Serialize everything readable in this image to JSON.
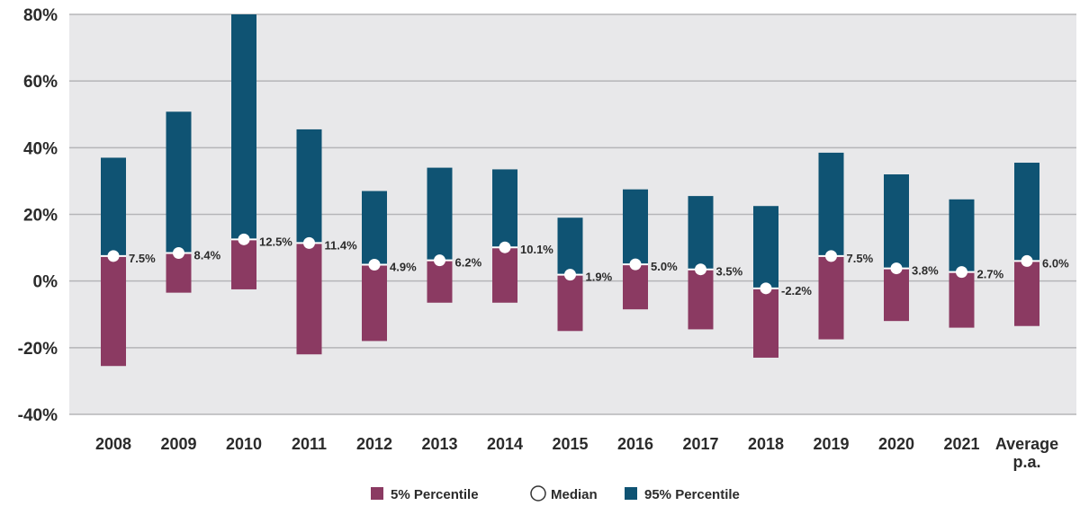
{
  "chart_data": {
    "type": "bar",
    "categories": [
      "2008",
      "2009",
      "2010",
      "2011",
      "2012",
      "2013",
      "2014",
      "2015",
      "2016",
      "2017",
      "2018",
      "2019",
      "2020",
      "2021",
      "Average p.a."
    ],
    "category_lines": [
      [
        "2008"
      ],
      [
        "2009"
      ],
      [
        "2010"
      ],
      [
        "2011"
      ],
      [
        "2012"
      ],
      [
        "2013"
      ],
      [
        "2014"
      ],
      [
        "2015"
      ],
      [
        "2016"
      ],
      [
        "2017"
      ],
      [
        "2018"
      ],
      [
        "2019"
      ],
      [
        "2020"
      ],
      [
        "2021"
      ],
      [
        "Average",
        "p.a."
      ]
    ],
    "series": [
      {
        "name": "5% Percentile",
        "values": [
          -25.5,
          -3.5,
          -2.5,
          -22.0,
          -18.0,
          -6.5,
          -6.5,
          -15.0,
          -8.5,
          -14.5,
          -23.0,
          -17.5,
          -12.0,
          -14.0,
          -13.5
        ]
      },
      {
        "name": "Median",
        "values": [
          7.5,
          8.4,
          12.5,
          11.4,
          4.9,
          6.2,
          10.1,
          1.9,
          5.0,
          3.5,
          -2.2,
          7.5,
          3.8,
          2.7,
          6.0
        ]
      },
      {
        "name": "95% Percentile",
        "values": [
          37.0,
          50.8,
          80.0,
          45.5,
          27.0,
          34.0,
          33.5,
          19.0,
          27.5,
          25.5,
          22.5,
          38.5,
          32.0,
          24.5,
          35.5
        ]
      }
    ],
    "median_labels": [
      "7.5%",
      "8.4%",
      "12.5%",
      "11.4%",
      "4.9%",
      "6.2%",
      "10.1%",
      "1.9%",
      "5.0%",
      "3.5%",
      "-2.2%",
      "7.5%",
      "3.8%",
      "2.7%",
      "6.0%"
    ],
    "y_ticks": [
      "80%",
      "60%",
      "40%",
      "20%",
      "0%",
      "-20%",
      "-40%"
    ],
    "y_tick_values": [
      80,
      60,
      40,
      20,
      0,
      -20,
      -40
    ],
    "ylim": [
      -40,
      80
    ],
    "grid": true,
    "legend_position": "bottom",
    "legend": [
      "5% Percentile",
      "Median",
      "95% Percentile"
    ],
    "colors": {
      "low": "#8b3a62",
      "high": "#0f5373",
      "background": "#e8e8ea",
      "grid": "#b5b5b8",
      "median": "#ffffff"
    }
  }
}
